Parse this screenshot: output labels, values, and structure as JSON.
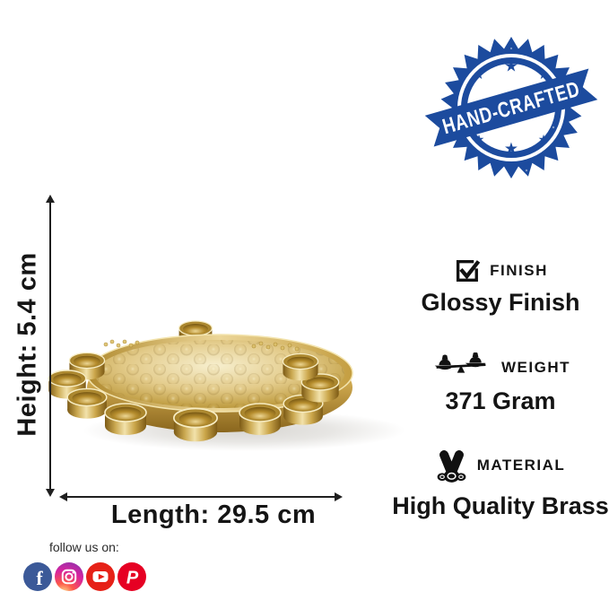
{
  "badge": {
    "text": "HAND-CRAFTED",
    "star": "★",
    "color": "#1c4b9e"
  },
  "dimensions": {
    "height": "Height: 5.4 cm",
    "length": "Length: 29.5 cm"
  },
  "specs": [
    {
      "icon": "checkbox-check-icon",
      "label": "FINISH",
      "value": "Glossy Finish"
    },
    {
      "icon": "balance-scale-icon",
      "label": "WEIGHT",
      "value": "371 Gram"
    },
    {
      "icon": "metal-rolls-icon",
      "label": "MATERIAL",
      "value": "High Quality Brass"
    }
  ],
  "social": {
    "heading": "follow us on:",
    "icons": [
      {
        "name": "facebook-icon",
        "glyph": "f",
        "color": "#3b5998"
      },
      {
        "name": "instagram-icon",
        "color": "gradient:#fdf497,#fd5949,#d6249f,#8134af"
      },
      {
        "name": "youtube-icon",
        "color": "#e62117"
      },
      {
        "name": "pinterest-icon",
        "glyph": "P",
        "color": "#e60023"
      }
    ]
  },
  "colors": {
    "badge_blue": "#1c4b9e",
    "brass_gold": "#cfa94f"
  }
}
